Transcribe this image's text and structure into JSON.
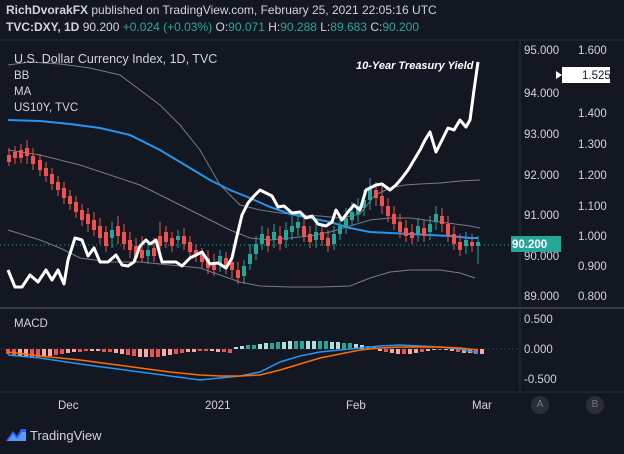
{
  "header": {
    "author": "RichDvorakFX",
    "published": "published on TradingView.com, February 25, 2021 22:05:16 UTC",
    "symbol": "TVC:DXY, 1D",
    "price": "90.200",
    "change": "+0.024 (+0.03%)",
    "o_label": "O:",
    "o_value": "90.071",
    "h_label": "H:",
    "h_value": "90.288",
    "l_label": "L:",
    "l_value": "89.683",
    "c_label": "C:",
    "c_value": "90.200"
  },
  "legend": {
    "title": "U.S. Dollar Currency Index, 1D, TVC",
    "indicators": [
      "BB",
      "MA",
      "US10Y, TVC"
    ]
  },
  "annotation": "10-Year Treasury Yield",
  "right_axis": {
    "ticks": [
      "95.000",
      "94.000",
      "93.000",
      "92.000",
      "91.000",
      "90.000",
      "89.000"
    ],
    "price_badge": "90.200"
  },
  "inner_axis": {
    "ticks": [
      "1.600",
      "1.400",
      "1.300",
      "1.200",
      "1.100",
      "1.000",
      "0.900",
      "0.800"
    ],
    "badge": "1.525"
  },
  "macd": {
    "title": "MACD",
    "ticks": [
      "0.500",
      "0.000",
      "-0.500"
    ]
  },
  "x_axis": {
    "labels": [
      "Dec",
      "2021",
      "Feb",
      "Mar"
    ]
  },
  "buttons": {
    "a": "A",
    "b": "B"
  },
  "brand": "TradingView",
  "colors": {
    "up": "#26a69a",
    "down": "#ef5350",
    "ma": "#2196f3",
    "yield": "#ffffff",
    "macd": "#2196f3",
    "signal": "#ff6d00",
    "bb": "#787b86"
  }
}
